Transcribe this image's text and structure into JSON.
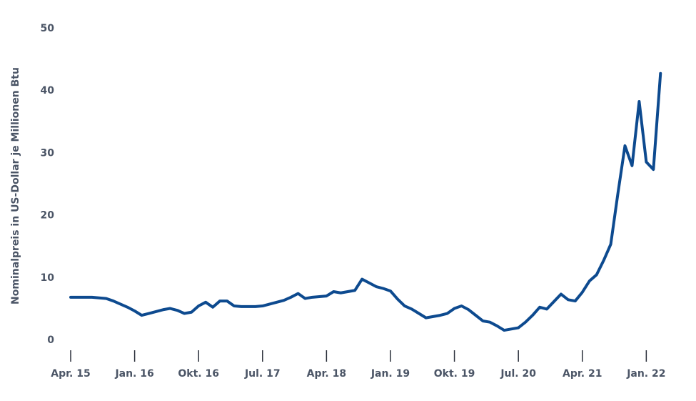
{
  "chart_data": {
    "type": "line",
    "y_label": "Nominalpreis in US-Dollar je Millionen Btu",
    "categories": [
      "Apr. 15",
      null,
      null,
      null,
      null,
      null,
      null,
      null,
      null,
      "Jan. 16",
      null,
      null,
      null,
      null,
      null,
      null,
      null,
      null,
      "Okt. 16",
      null,
      null,
      null,
      null,
      null,
      null,
      null,
      null,
      "Jul. 17",
      null,
      null,
      null,
      null,
      null,
      null,
      null,
      null,
      "Apr. 18",
      null,
      null,
      null,
      null,
      null,
      null,
      null,
      null,
      "Jan. 19",
      null,
      null,
      null,
      null,
      null,
      null,
      null,
      null,
      "Okt. 19",
      null,
      null,
      null,
      null,
      null,
      null,
      null,
      null,
      "Jul. 20",
      null,
      null,
      null,
      null,
      null,
      null,
      null,
      null,
      "Apr. 21",
      null,
      null,
      null,
      null,
      null,
      null,
      null,
      null,
      "Jan. 22",
      null,
      null
    ],
    "series": [
      {
        "color": "#0d4a8f",
        "values": [
          6.9,
          6.9,
          6.9,
          6.9,
          6.8,
          6.7,
          6.3,
          5.8,
          5.3,
          4.7,
          4.0,
          4.3,
          4.6,
          4.9,
          5.1,
          4.8,
          4.3,
          4.5,
          5.5,
          6.1,
          5.3,
          6.3,
          6.3,
          5.5,
          5.4,
          5.4,
          5.4,
          5.5,
          5.8,
          6.1,
          6.4,
          6.9,
          7.5,
          6.7,
          6.9,
          7.0,
          7.1,
          7.8,
          7.6,
          7.8,
          8.0,
          9.8,
          9.2,
          8.6,
          8.3,
          7.9,
          6.6,
          5.5,
          5.0,
          4.3,
          3.6,
          3.8,
          4.0,
          4.3,
          5.1,
          5.5,
          4.9,
          4.0,
          3.1,
          2.9,
          2.3,
          1.6,
          1.8,
          2.0,
          2.9,
          4.0,
          5.3,
          5.0,
          6.2,
          7.4,
          6.5,
          6.3,
          7.7,
          9.5,
          10.5,
          12.8,
          15.4,
          23.5,
          31.2,
          28.0,
          38.3,
          28.6,
          27.4,
          42.8
        ]
      }
    ],
    "ylim": [
      0,
      50
    ],
    "yticks": [
      0,
      10,
      20,
      30,
      40,
      50
    ]
  }
}
